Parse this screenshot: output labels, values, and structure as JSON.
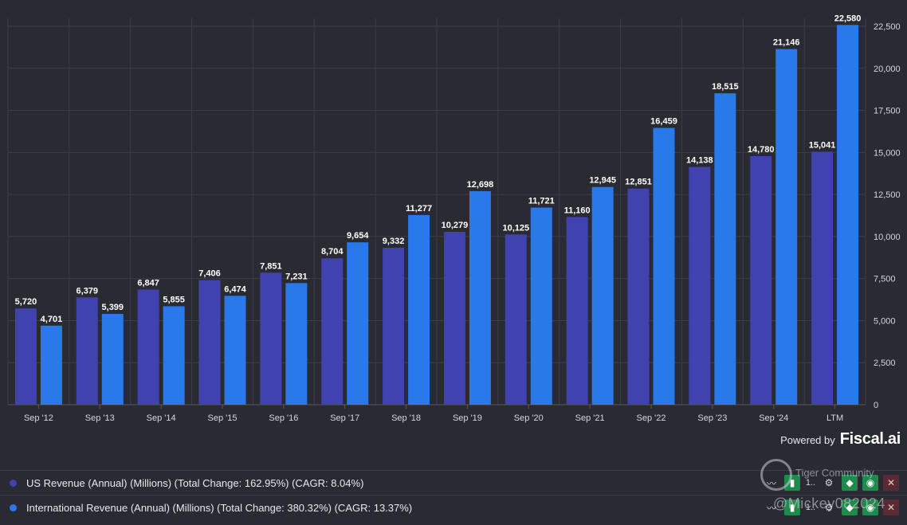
{
  "chart_data": {
    "type": "bar",
    "categories": [
      "Sep '12",
      "Sep '13",
      "Sep '14",
      "Sep '15",
      "Sep '16",
      "Sep '17",
      "Sep '18",
      "Sep '19",
      "Sep '20",
      "Sep '21",
      "Sep '22",
      "Sep '23",
      "Sep '24",
      "LTM"
    ],
    "series": [
      {
        "name": "US Revenue (Annual) (Millions) (Total Change: 162.95%) (CAGR: 8.04%)",
        "color": "#4042b0",
        "values": [
          5720,
          6379,
          6847,
          7406,
          7851,
          8704,
          9332,
          10279,
          10125,
          11160,
          12851,
          14138,
          14780,
          15041
        ],
        "labels": [
          "5,720",
          "6,379",
          "6,847",
          "7,406",
          "7,851",
          "8,704",
          "9,332",
          "10,279",
          "10,125",
          "11,160",
          "12,851",
          "14,138",
          "14,780",
          "15,041"
        ]
      },
      {
        "name": "International Revenue (Annual) (Millions) (Total Change: 380.32%) (CAGR: 13.37%)",
        "color": "#2979eb",
        "values": [
          4701,
          5399,
          5855,
          6474,
          7231,
          9654,
          11277,
          12698,
          11721,
          12945,
          16459,
          18515,
          21146,
          22580
        ],
        "labels": [
          "4,701",
          "5,399",
          "5,855",
          "6,474",
          "7,231",
          "9,654",
          "11,277",
          "12,698",
          "11,721",
          "12,945",
          "16,459",
          "18,515",
          "21,146",
          "22,580"
        ]
      }
    ],
    "ylim": [
      0,
      22500
    ],
    "yticks": [
      0,
      2500,
      5000,
      7500,
      10000,
      12500,
      15000,
      17500,
      20000,
      22500
    ],
    "ytick_labels": [
      "0",
      "2,500",
      "5,000",
      "7,500",
      "10,000",
      "12,500",
      "15,000",
      "17,500",
      "20,000",
      "22,500"
    ],
    "y_axis_side": "right",
    "grid": true,
    "legend": "bottom"
  },
  "branding": {
    "powered_by": "Powered by",
    "brand": "Fiscal.ai"
  },
  "legend_rows": [
    {
      "label": "US Revenue (Annual) (Millions) (Total Change: 162.95%) (CAGR: 8.04%)",
      "color": "#4042b0"
    },
    {
      "label": "International Revenue (Annual) (Millions) (Total Change: 380.32%) (CAGR: 13.37%)",
      "color": "#2979eb"
    }
  ],
  "row_tools": {
    "truncated_text": "1..",
    "icons": [
      "trend-icon",
      "bar-chart-icon",
      "gear-icon",
      "tag-icon",
      "eye-icon",
      "close-icon"
    ]
  },
  "watermark": {
    "top": "Tiger Community",
    "handle": "@Mickey082024"
  },
  "colors": {
    "background": "#2a2a33",
    "grid": "#3d3d47",
    "us": "#4042b0",
    "intl": "#2979eb"
  }
}
